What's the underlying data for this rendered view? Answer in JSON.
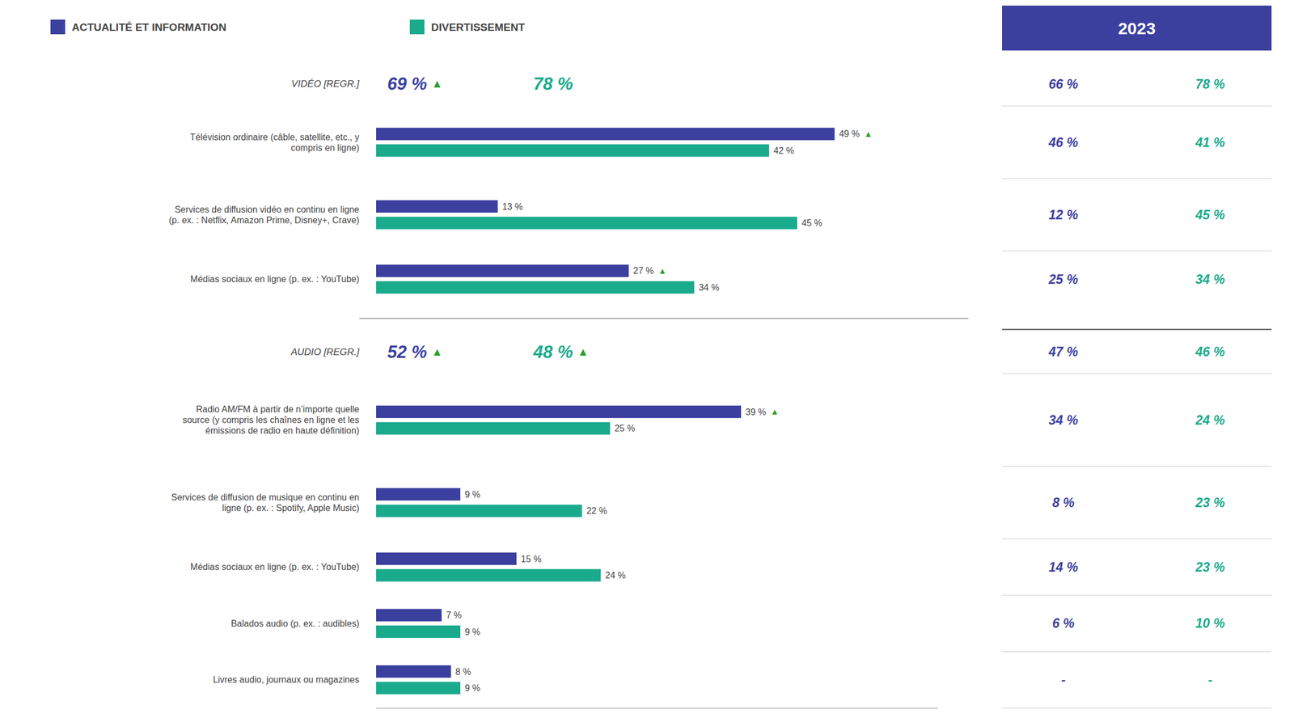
{
  "chart_data": {
    "type": "bar",
    "orientation": "horizontal",
    "data_labels": true,
    "grid": false,
    "tick_labels": false,
    "xlim": [
      0,
      60
    ],
    "series": [
      {
        "name": "ACTUALITÉ ET INFORMATION",
        "color": "#3b3f9e",
        "values": [
          49,
          13,
          27,
          39,
          9,
          15,
          7,
          8
        ],
        "value_labels": [
          "49 %",
          "13 %",
          "27 %",
          "39 %",
          "9 %",
          "15 %",
          "7 %",
          "8 %"
        ],
        "trend_up": [
          true,
          false,
          true,
          true,
          false,
          false,
          false,
          false
        ]
      },
      {
        "name": "DIVERTISSEMENT",
        "color": "#1aaa8c",
        "values": [
          42,
          45,
          34,
          25,
          22,
          24,
          9,
          9
        ],
        "value_labels": [
          "42 %",
          "45 %",
          "34 %",
          "25 %",
          "22 %",
          "24 %",
          "9 %",
          "9 %"
        ],
        "trend_up": [
          false,
          false,
          false,
          false,
          false,
          false,
          false,
          false
        ]
      }
    ],
    "groups": [
      {
        "label": "VIDÉO [REGR.]",
        "values": [
          69,
          78
        ],
        "value_labels": [
          "69 %",
          "78 %"
        ],
        "trend_up": [
          true,
          false
        ],
        "categories": [
          "Télévision ordinaire (câble, satellite, etc., y\ncompris en ligne)",
          "Services de diffusion vidéo en continu en ligne\n(p. ex. : Netflix, Amazon Prime, Disney+, Crave)",
          "Médias sociaux en ligne (p. ex. : YouTube)"
        ]
      },
      {
        "label": "AUDIO [REGR.]",
        "values": [
          52,
          48
        ],
        "value_labels": [
          "52 %",
          "48 %"
        ],
        "trend_up": [
          true,
          true
        ],
        "categories": [
          "Radio AM/FM à partir de n’importe quelle\nsource (y compris les chaînes en ligne et les\némissions de radio en haute définition)",
          "Services de diffusion de musique en continu en\nligne (p. ex. : Spotify, Apple Music)",
          "Médias sociaux en ligne (p. ex. : YouTube)",
          "Balados audio (p. ex. : audibles)",
          "Livres audio, journaux ou magazines"
        ]
      }
    ],
    "trend_symbol": "▲",
    "trend_color": "#2d9e2d",
    "table": {
      "title": "2023",
      "values": [
        [
          66,
          78
        ],
        [
          46,
          41
        ],
        [
          12,
          45
        ],
        [
          25,
          34
        ],
        [
          47,
          46
        ],
        [
          34,
          24
        ],
        [
          8,
          23
        ],
        [
          14,
          23
        ],
        [
          6,
          10
        ],
        [
          null,
          null
        ]
      ],
      "value_labels": [
        [
          "66 %",
          "78 %"
        ],
        [
          "46 %",
          "41 %"
        ],
        [
          "12 %",
          "45 %"
        ],
        [
          "25 %",
          "34 %"
        ],
        [
          "47 %",
          "46 %"
        ],
        [
          "34 %",
          "24 %"
        ],
        [
          "8 %",
          "23 %"
        ],
        [
          "14 %",
          "23 %"
        ],
        [
          "6 %",
          "10 %"
        ],
        [
          "-",
          "-"
        ]
      ]
    }
  }
}
